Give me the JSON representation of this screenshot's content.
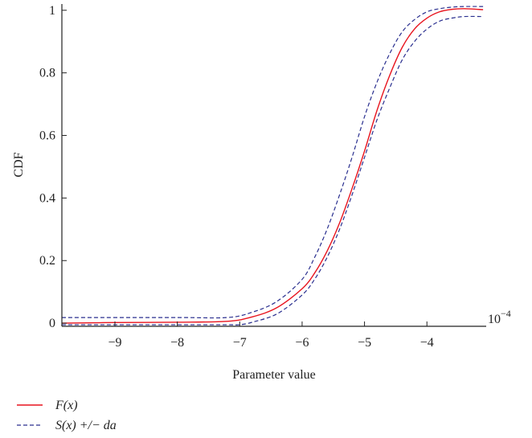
{
  "chart_data": {
    "type": "line",
    "xlabel": "Parameter value",
    "ylabel": "CDF",
    "x_multiplier": "10^-4",
    "x_multiplier_base": "10",
    "x_multiplier_exp": "−4",
    "xlim": [
      -9.85,
      -3.05
    ],
    "ylim": [
      -0.01,
      1.02
    ],
    "x_ticks": [
      -9,
      -8,
      -7,
      -6,
      -5,
      -4
    ],
    "x_tick_labels": [
      "−9",
      "−8",
      "−7",
      "−6",
      "−5",
      "−4"
    ],
    "y_ticks": [
      0,
      0.2,
      0.4,
      0.6,
      0.8,
      1
    ],
    "y_tick_labels": [
      "0",
      "0.2",
      "0.4",
      "0.6",
      "0.8",
      "1"
    ],
    "grid": false,
    "legend_position": "below",
    "series": [
      {
        "name": "F(x)",
        "color": "#e8141e",
        "style": "solid",
        "x": [
          -9.85,
          -9.0,
          -8.0,
          -7.2,
          -6.8,
          -6.4,
          -6.0,
          -5.8,
          -5.6,
          -5.4,
          -5.2,
          -5.0,
          -4.8,
          -4.6,
          -4.4,
          -4.2,
          -4.0,
          -3.8,
          -3.6,
          -3.4,
          -3.1
        ],
        "y": [
          0.0,
          0.002,
          0.003,
          0.006,
          0.02,
          0.05,
          0.11,
          0.16,
          0.23,
          0.32,
          0.43,
          0.55,
          0.68,
          0.79,
          0.88,
          0.94,
          0.975,
          0.995,
          1.003,
          1.005,
          1.002
        ]
      },
      {
        "name": "S(x) +/− da",
        "color": "#2a2f8f",
        "style": "dashed",
        "x": [
          -9.85,
          -8.0,
          -7.2,
          -6.8,
          -6.4,
          -6.0,
          -5.8,
          -5.6,
          -5.4,
          -5.2,
          -5.0,
          -4.8,
          -4.6,
          -4.4,
          -4.2,
          -4.0,
          -3.8,
          -3.6,
          -3.4,
          -3.1
        ],
        "y": [
          0.018,
          0.018,
          0.018,
          0.035,
          0.07,
          0.14,
          0.21,
          0.3,
          0.41,
          0.53,
          0.66,
          0.77,
          0.86,
          0.93,
          0.97,
          0.995,
          1.005,
          1.01,
          1.012,
          1.012
        ]
      },
      {
        "name": "S(x) +/− da (lower)",
        "color": "#2a2f8f",
        "style": "dashed",
        "x": [
          -9.85,
          -8.0,
          -7.2,
          -7.0,
          -6.8,
          -6.4,
          -6.0,
          -5.8,
          -5.6,
          -5.4,
          -5.2,
          -5.0,
          -4.8,
          -4.6,
          -4.4,
          -4.2,
          -4.0,
          -3.8,
          -3.6,
          -3.4,
          -3.1
        ],
        "y": [
          -0.005,
          -0.005,
          -0.005,
          -0.005,
          0.003,
          0.03,
          0.09,
          0.14,
          0.21,
          0.3,
          0.41,
          0.53,
          0.65,
          0.75,
          0.84,
          0.9,
          0.94,
          0.965,
          0.975,
          0.98,
          0.98
        ]
      }
    ],
    "legend": [
      {
        "label": "F(x)",
        "color": "#e8141e",
        "style": "solid"
      },
      {
        "label": "S(x) +/− da",
        "color": "#2a2f8f",
        "style": "dashed"
      }
    ]
  }
}
